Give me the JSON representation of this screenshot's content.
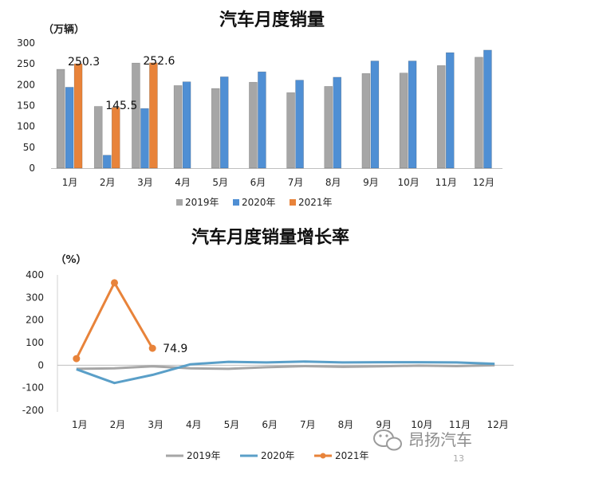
{
  "chart_data": [
    {
      "type": "bar",
      "title": "汽车月度销量",
      "ylabel": "（万辆）",
      "xlabel": "",
      "ylim": [
        0,
        300
      ],
      "yticks": [
        0,
        50,
        100,
        150,
        200,
        250,
        300
      ],
      "categories": [
        "1月",
        "2月",
        "3月",
        "4月",
        "5月",
        "6月",
        "7月",
        "8月",
        "9月",
        "10月",
        "11月",
        "12月"
      ],
      "series": [
        {
          "name": "2019年",
          "color": "#a6a6a6",
          "values": [
            237,
            148,
            252,
            198,
            191,
            206,
            181,
            196,
            227,
            228,
            246,
            266
          ]
        },
        {
          "name": "2020年",
          "color": "#4f8fd4",
          "values": [
            194,
            31,
            143,
            207,
            219,
            231,
            211,
            218,
            257,
            257,
            277,
            283
          ]
        },
        {
          "name": "2021年",
          "color": "#e8833a",
          "values": [
            250.3,
            145.5,
            252.6,
            null,
            null,
            null,
            null,
            null,
            null,
            null,
            null,
            null
          ]
        }
      ],
      "data_labels": [
        {
          "series": 2,
          "index": 0,
          "text": "250.3"
        },
        {
          "series": 2,
          "index": 1,
          "text": "145.5"
        },
        {
          "series": 2,
          "index": 2,
          "text": "252.6"
        }
      ],
      "legend_position": "bottom",
      "grid": false
    },
    {
      "type": "line",
      "title": "汽车月度销量增长率",
      "ylabel": "（%）",
      "xlabel": "",
      "ylim": [
        -200,
        400
      ],
      "yticks": [
        -200,
        -100,
        0,
        100,
        200,
        300,
        400
      ],
      "categories": [
        "1月",
        "2月",
        "3月",
        "4月",
        "5月",
        "6月",
        "7月",
        "8月",
        "9月",
        "10月",
        "11月",
        "12月"
      ],
      "series": [
        {
          "name": "2019年",
          "color": "#a6a6a6",
          "marker": false,
          "values": [
            -16,
            -14,
            -5,
            -14,
            -16,
            -9,
            -4,
            -7,
            -5,
            -2,
            -4,
            0
          ]
        },
        {
          "name": "2020年",
          "color": "#5a9fc8",
          "marker": false,
          "values": [
            -18,
            -79,
            -43,
            4,
            15,
            12,
            16,
            12,
            13,
            13,
            12,
            6
          ]
        },
        {
          "name": "2021年",
          "color": "#e8833a",
          "marker": true,
          "values": [
            29,
            365,
            74.9,
            null,
            null,
            null,
            null,
            null,
            null,
            null,
            null,
            null
          ]
        }
      ],
      "data_labels": [
        {
          "series": 2,
          "index": 2,
          "text": "74.9"
        }
      ],
      "legend_position": "bottom",
      "grid": false
    }
  ],
  "watermark": {
    "icon": "wechat-icon",
    "text": "昂扬汽车",
    "page_number": "13"
  }
}
